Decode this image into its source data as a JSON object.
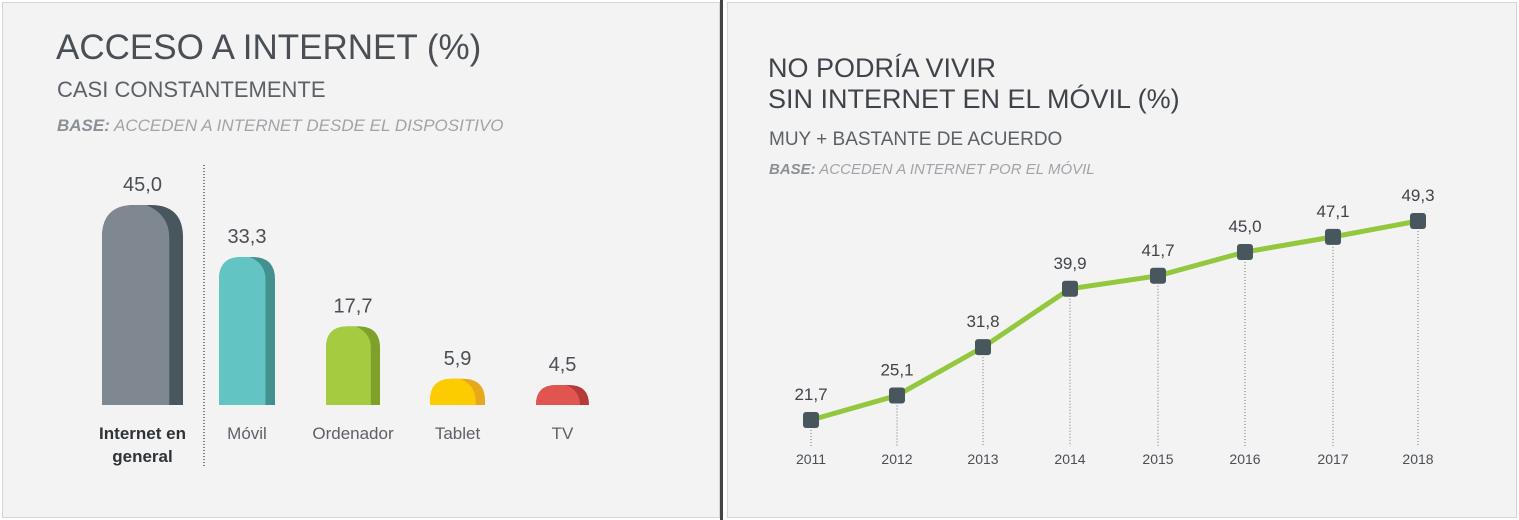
{
  "chart_data": [
    {
      "type": "bar",
      "title": "ACCESO A INTERNET (%)",
      "subtitle": "CASI CONSTANTEMENTE",
      "base_label": "BASE:",
      "base_text": "ACCEDEN A INTERNET DESDE EL DISPOSITIVO",
      "categories": [
        "Internet en general",
        "Móvil",
        "Ordenador",
        "Tablet",
        "TV"
      ],
      "category_lines": [
        [
          "Internet en",
          "general"
        ],
        [
          "Móvil"
        ],
        [
          "Ordenador"
        ],
        [
          "Tablet"
        ],
        [
          "TV"
        ]
      ],
      "values": [
        45.0,
        33.3,
        17.7,
        5.9,
        4.5
      ],
      "value_labels": [
        "45,0",
        "33,3",
        "17,7",
        "5,9",
        "4,5"
      ],
      "colors": [
        "#7f8790",
        "#62c4c3",
        "#a5cc41",
        "#fccc00",
        "#e15551"
      ],
      "shade_colors": [
        "#48565e",
        "#43918f",
        "#7fa12a",
        "#e8a81c",
        "#b53a38"
      ],
      "ylim": [
        0,
        45
      ]
    },
    {
      "type": "line",
      "title_lines": [
        "NO PODRÍA VIVIR",
        "SIN INTERNET EN EL MÓVIL (%)"
      ],
      "subtitle": "MUY + BASTANTE DE ACUERDO",
      "base_label": "BASE:",
      "base_text": "ACCEDEN A INTERNET POR EL MÓVIL",
      "x": [
        "2011",
        "2012",
        "2013",
        "2014",
        "2015",
        "2016",
        "2017",
        "2018"
      ],
      "values": [
        21.7,
        25.1,
        31.8,
        39.9,
        41.7,
        45.0,
        47.1,
        49.3
      ],
      "value_labels": [
        "21,7",
        "25,1",
        "31,8",
        "39,9",
        "41,7",
        "45,0",
        "47,1",
        "49,3"
      ],
      "line_color": "#93c83e",
      "marker_color": "#48565e"
    }
  ]
}
